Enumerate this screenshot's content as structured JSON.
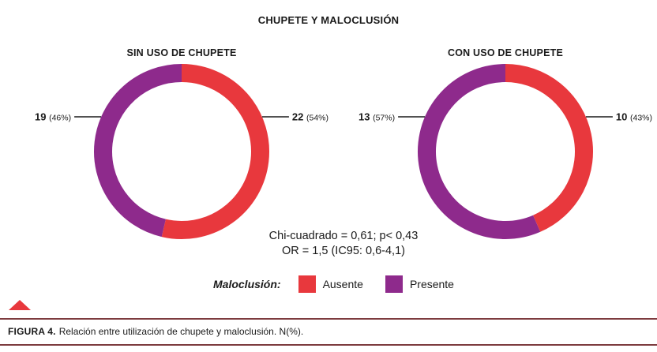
{
  "figure": {
    "title": "CHUPETE Y MALOCLUSIÓN",
    "caption_lead": "FIGURA 4.",
    "caption_text": "Relación entre utilización de chupete y maloclusión. N(%)."
  },
  "colors": {
    "ausente": "#e8383d",
    "presente": "#8e2a8c",
    "leader": "#1a1a1a"
  },
  "chart_data": [
    {
      "type": "pie",
      "donut": true,
      "title": "SIN USO DE CHUPETE",
      "slices": [
        {
          "category": "Ausente",
          "value": 22,
          "percent_label": "(54%)",
          "color": "#e8383d"
        },
        {
          "category": "Presente",
          "value": 19,
          "percent_label": "(46%)",
          "color": "#8e2a8c"
        }
      ]
    },
    {
      "type": "pie",
      "donut": true,
      "title": "CON USO DE CHUPETE",
      "slices": [
        {
          "category": "Ausente",
          "value": 10,
          "percent_label": "(43%)",
          "color": "#e8383d"
        },
        {
          "category": "Presente",
          "value": 13,
          "percent_label": "(57%)",
          "color": "#8e2a8c"
        }
      ]
    }
  ],
  "stats": {
    "line1": "Chi-cuadrado = 0,61; p< 0,43",
    "line2": "OR = 1,5 (IC95: 0,6-4,1)"
  },
  "legend": {
    "title": "Maloclusión:",
    "items": [
      {
        "label": "Ausente",
        "color": "#e8383d"
      },
      {
        "label": "Presente",
        "color": "#8e2a8c"
      }
    ]
  }
}
